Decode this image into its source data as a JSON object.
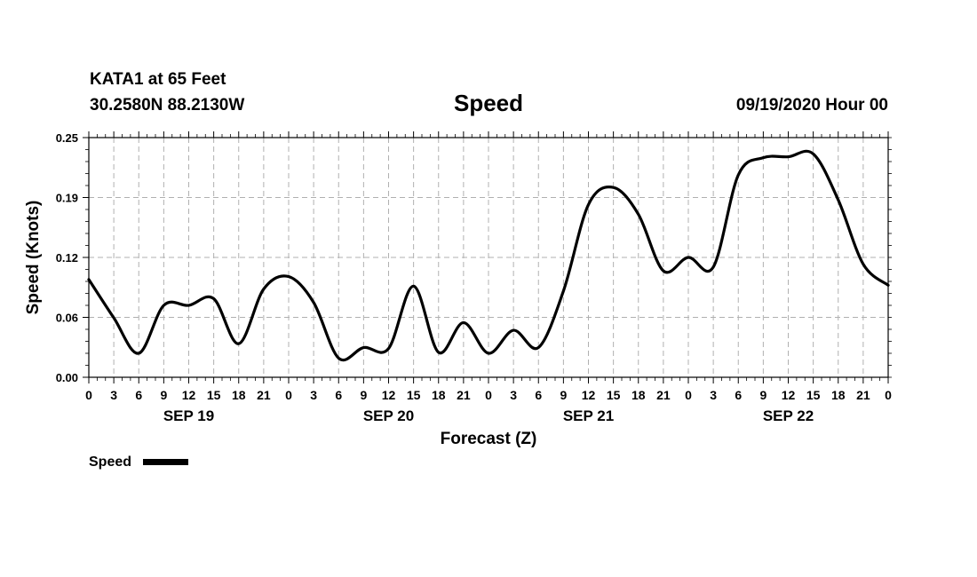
{
  "header": {
    "station": "KATA1 at 65 Feet",
    "coords": "30.2580N 88.2130W",
    "title": "Speed",
    "date": "09/19/2020 Hour 00"
  },
  "chart_data": {
    "type": "line",
    "title": "Speed",
    "xlabel": "Forecast (Z)",
    "ylabel": "Speed (Knots)",
    "ylim": [
      0,
      0.25
    ],
    "xlim": [
      0,
      96
    ],
    "y_ticks": [
      "0.00",
      "0.06",
      "0.12",
      "0.19",
      "0.25"
    ],
    "x_ticks": [
      "0",
      "3",
      "6",
      "9",
      "12",
      "15",
      "18",
      "21",
      "0",
      "3",
      "6",
      "9",
      "12",
      "15",
      "18",
      "21",
      "0",
      "3",
      "6",
      "9",
      "12",
      "15",
      "18",
      "21",
      "0",
      "3",
      "6",
      "9",
      "12",
      "15",
      "18",
      "21",
      "0"
    ],
    "day_labels": [
      "SEP 19",
      "SEP 20",
      "SEP 21",
      "SEP 22"
    ],
    "grid": true,
    "legend": {
      "label": "Speed",
      "position": "bottom-left"
    },
    "series": [
      {
        "name": "Speed",
        "x": [
          0,
          3,
          6,
          9,
          12,
          15,
          18,
          21,
          24,
          27,
          30,
          33,
          36,
          39,
          42,
          45,
          48,
          51,
          54,
          57,
          60,
          63,
          66,
          69,
          72,
          75,
          78,
          81,
          84,
          87,
          90,
          93,
          96
        ],
        "values": [
          0.102,
          0.062,
          0.025,
          0.075,
          0.075,
          0.082,
          0.035,
          0.092,
          0.105,
          0.078,
          0.02,
          0.031,
          0.03,
          0.095,
          0.026,
          0.057,
          0.025,
          0.049,
          0.031,
          0.09,
          0.18,
          0.198,
          0.17,
          0.111,
          0.125,
          0.115,
          0.211,
          0.229,
          0.23,
          0.233,
          0.185,
          0.118,
          0.096
        ]
      }
    ]
  }
}
